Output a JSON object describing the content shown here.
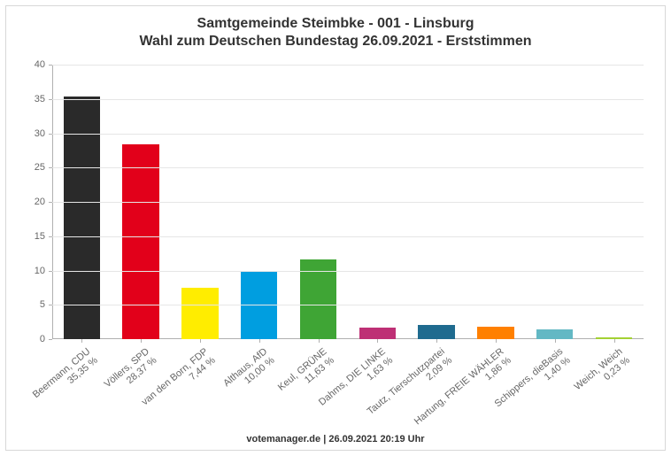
{
  "chart": {
    "type": "bar",
    "title_line1": "Samtgemeinde Steimbke - 001 - Linsburg",
    "title_line2": "Wahl zum Deutschen Bundestag 26.09.2021  - Erststimmen",
    "title_fontsize": 16,
    "footer": "votemanager.de | 26.09.2021 20:19 Uhr",
    "footer_fontsize": 11,
    "background_color": "#ffffff",
    "frame_border_color": "#d8d8d8",
    "grid_color": "#e6e6e6",
    "axis_color": "#b0b0b0",
    "tick_label_color": "#666666",
    "tick_label_fontsize": 11,
    "ylim": [
      0,
      40
    ],
    "ytick_step": 5,
    "yticks": [
      0,
      5,
      10,
      15,
      20,
      25,
      30,
      35,
      40
    ],
    "bar_width_ratio": 0.62,
    "categories": [
      {
        "name": "Beermann, CDU",
        "pct_label": "35,35 %",
        "value": 35.35,
        "color": "#2a2a2a"
      },
      {
        "name": "Völlers, SPD",
        "pct_label": "28,37 %",
        "value": 28.37,
        "color": "#e2001a"
      },
      {
        "name": "van den Born, FDP",
        "pct_label": "7,44 %",
        "value": 7.44,
        "color": "#ffed00"
      },
      {
        "name": "Althaus, AfD",
        "pct_label": "10,00 %",
        "value": 10.0,
        "color": "#009ee0"
      },
      {
        "name": "Keul, GRÜNE",
        "pct_label": "11,63 %",
        "value": 11.63,
        "color": "#3fa535"
      },
      {
        "name": "Dahms, DIE LINKE",
        "pct_label": "1,63 %",
        "value": 1.63,
        "color": "#be3075"
      },
      {
        "name": "Tautz, Tierschutzpartei",
        "pct_label": "2,09 %",
        "value": 2.09,
        "color": "#1f6b8f"
      },
      {
        "name": "Hartung, FREIE WÄHLER",
        "pct_label": "1,86 %",
        "value": 1.86,
        "color": "#ff8000"
      },
      {
        "name": "Schippers, dieBasis",
        "pct_label": "1,40 %",
        "value": 1.4,
        "color": "#63b8c4"
      },
      {
        "name": "Weich, Weich",
        "pct_label": "0,23 %",
        "value": 0.23,
        "color": "#a3d133"
      }
    ]
  }
}
